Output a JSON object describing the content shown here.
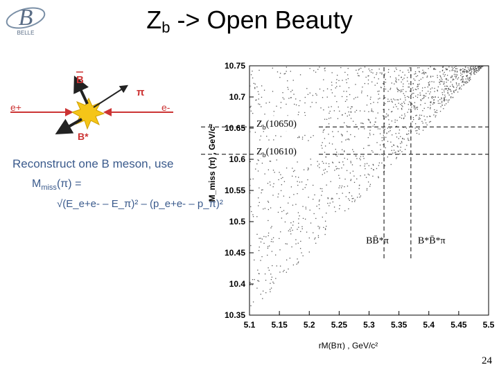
{
  "logo": {
    "letter": "B",
    "caption": "BELLE"
  },
  "title": {
    "main": "Z",
    "sub": "b",
    "rest": " -> Open Beauty"
  },
  "diagram": {
    "b_bar": "B",
    "pi": "π",
    "e_plus": "e+",
    "e_minus": "e-",
    "b_star": "B*"
  },
  "text": {
    "reconstruct": "Reconstruct one B meson, use",
    "mmiss_prefix": "M",
    "mmiss_sub": "miss",
    "mmiss_suffix": "(π) =",
    "formula": "√(E_e+e- – E_π)² – (p_e+e- – p_π)²"
  },
  "chart_data": {
    "type": "scatter",
    "xlabel": "rM(Bπ) , GeV/c²",
    "ylabel": "M_miss (π) , GeV/c²",
    "xlim": [
      5.1,
      5.5
    ],
    "ylim": [
      10.35,
      10.75
    ],
    "x_ticks": [
      "5.1",
      "5.15",
      "5.2",
      "5.25",
      "5.3",
      "5.35",
      "5.4",
      "5.45",
      "5.5"
    ],
    "y_ticks": [
      "10.35",
      "10.4",
      "10.45",
      "10.5",
      "10.55",
      "10.6",
      "10.65",
      "10.7",
      "10.75"
    ],
    "kinematic_boundary": [
      [
        5.1,
        10.35
      ],
      [
        5.49,
        10.75
      ]
    ],
    "annotations": [
      {
        "label": "Zb(10650)",
        "main": "Z",
        "sub": "b",
        "rest": "(10650)",
        "y": 10.652
      },
      {
        "label": "Zb(10610)",
        "main": "Z",
        "sub": "b",
        "rest": "(10610)",
        "y": 10.608
      },
      {
        "label": "BB̄*π",
        "x": 5.325
      },
      {
        "label": "B*B̄*π",
        "x": 5.37
      }
    ],
    "threshold_lines": {
      "vertical_x": [
        5.325,
        5.37
      ],
      "horizontal_y": [
        10.608,
        10.652
      ]
    },
    "marker_color": "#555555"
  },
  "page_number": "24"
}
